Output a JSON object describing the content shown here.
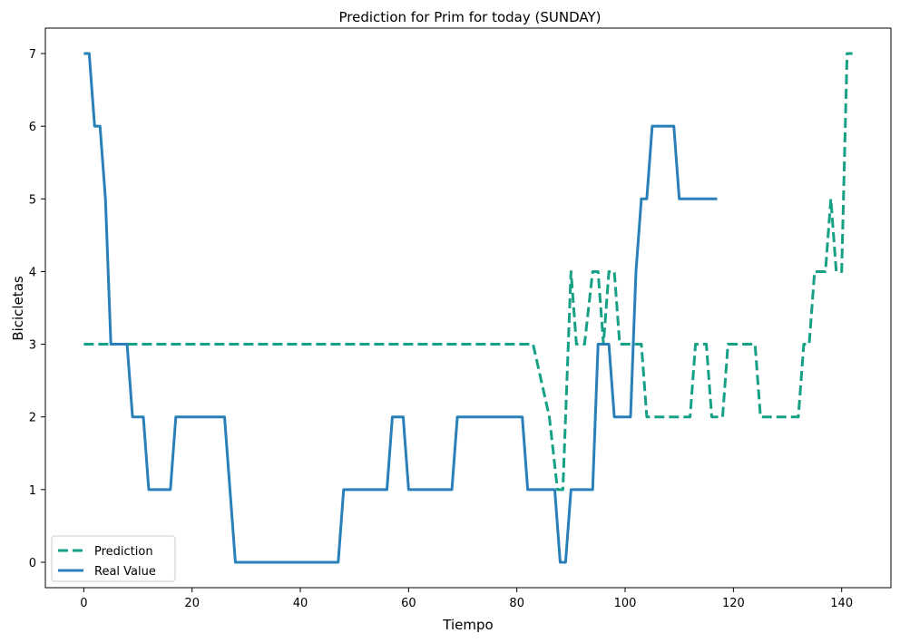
{
  "chart_data": {
    "type": "line",
    "title": "Prediction for Prim for today (SUNDAY)",
    "xlabel": "Tiempo",
    "ylabel": "Bicicletas",
    "xlim": [
      -7.1,
      149.1
    ],
    "ylim": [
      -0.35,
      7.35
    ],
    "xticks": [
      0,
      20,
      40,
      60,
      80,
      100,
      120,
      140
    ],
    "yticks": [
      0,
      1,
      2,
      3,
      4,
      5,
      6,
      7
    ],
    "grid": false,
    "legend_position": "lower-left",
    "series": [
      {
        "name": "Prediction",
        "color": "#16a085",
        "style": "dashed",
        "points": [
          [
            0,
            3
          ],
          [
            83,
            3
          ],
          [
            86,
            2
          ],
          [
            87.5,
            1
          ],
          [
            88.5,
            1
          ],
          [
            90,
            4
          ],
          [
            91,
            3
          ],
          [
            92.5,
            3
          ],
          [
            94,
            4
          ],
          [
            95,
            4
          ],
          [
            96,
            3
          ],
          [
            97,
            4
          ],
          [
            98,
            4
          ],
          [
            99,
            3
          ],
          [
            102,
            3
          ],
          [
            103,
            3
          ],
          [
            104,
            2
          ],
          [
            112,
            2
          ],
          [
            113,
            3
          ],
          [
            115,
            3
          ],
          [
            116,
            2
          ],
          [
            118,
            2
          ],
          [
            119,
            3
          ],
          [
            124,
            3
          ],
          [
            125,
            2
          ],
          [
            132,
            2
          ],
          [
            133,
            3
          ],
          [
            134,
            3
          ],
          [
            135,
            4
          ],
          [
            137,
            4
          ],
          [
            138,
            5
          ],
          [
            139,
            4
          ],
          [
            140,
            4
          ],
          [
            141,
            7
          ],
          [
            142,
            7
          ]
        ]
      },
      {
        "name": "Real Value",
        "color": "#2980b9",
        "style": "solid",
        "points": [
          [
            0,
            7
          ],
          [
            1,
            7
          ],
          [
            2,
            6
          ],
          [
            3,
            6
          ],
          [
            4,
            5
          ],
          [
            5,
            3
          ],
          [
            8,
            3
          ],
          [
            9,
            2
          ],
          [
            11,
            2
          ],
          [
            12,
            1
          ],
          [
            16,
            1
          ],
          [
            17,
            2
          ],
          [
            26,
            2
          ],
          [
            28,
            0
          ],
          [
            47,
            0
          ],
          [
            48,
            1
          ],
          [
            56,
            1
          ],
          [
            57,
            2
          ],
          [
            59,
            2
          ],
          [
            60,
            1
          ],
          [
            68,
            1
          ],
          [
            69,
            2
          ],
          [
            81,
            2
          ],
          [
            82,
            1
          ],
          [
            87,
            1
          ],
          [
            88,
            0
          ],
          [
            89,
            0
          ],
          [
            90,
            1
          ],
          [
            94,
            1
          ],
          [
            95,
            3
          ],
          [
            97,
            3
          ],
          [
            98,
            2
          ],
          [
            101,
            2
          ],
          [
            102,
            4
          ],
          [
            103,
            5
          ],
          [
            104,
            5
          ],
          [
            105,
            6
          ],
          [
            109,
            6
          ],
          [
            110,
            5
          ],
          [
            117,
            5
          ]
        ]
      }
    ]
  }
}
